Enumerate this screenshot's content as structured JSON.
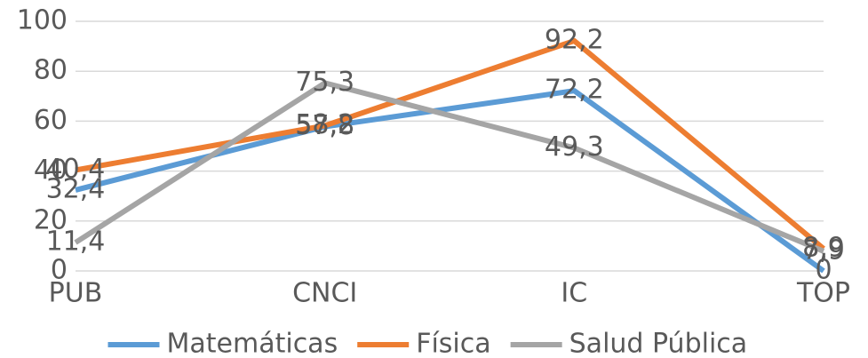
{
  "chart_data": {
    "type": "line",
    "categories": [
      "PUB",
      "CNCI",
      "IC",
      "TOP"
    ],
    "series": [
      {
        "name": "Matemáticas",
        "color": "#5b9bd5",
        "values": [
          32.4,
          57.8,
          72.2,
          0
        ],
        "value_labels": [
          "32,4",
          "57,8",
          "72,2",
          "0"
        ]
      },
      {
        "name": "Física",
        "color": "#ed7d31",
        "values": [
          40.4,
          58.2,
          92.2,
          8.9
        ],
        "value_labels": [
          "40,4",
          "58,2",
          "92,2",
          "8,9"
        ]
      },
      {
        "name": "Salud Pública",
        "color": "#a5a5a5",
        "values": [
          11.4,
          75.3,
          49.3,
          7.9
        ],
        "value_labels": [
          "11,4",
          "75,3",
          "49,3",
          "7,9"
        ]
      }
    ],
    "ylim": [
      0,
      100
    ],
    "yticks": [
      0,
      20,
      40,
      60,
      80,
      100
    ],
    "grid": true,
    "legend": "bottom"
  }
}
